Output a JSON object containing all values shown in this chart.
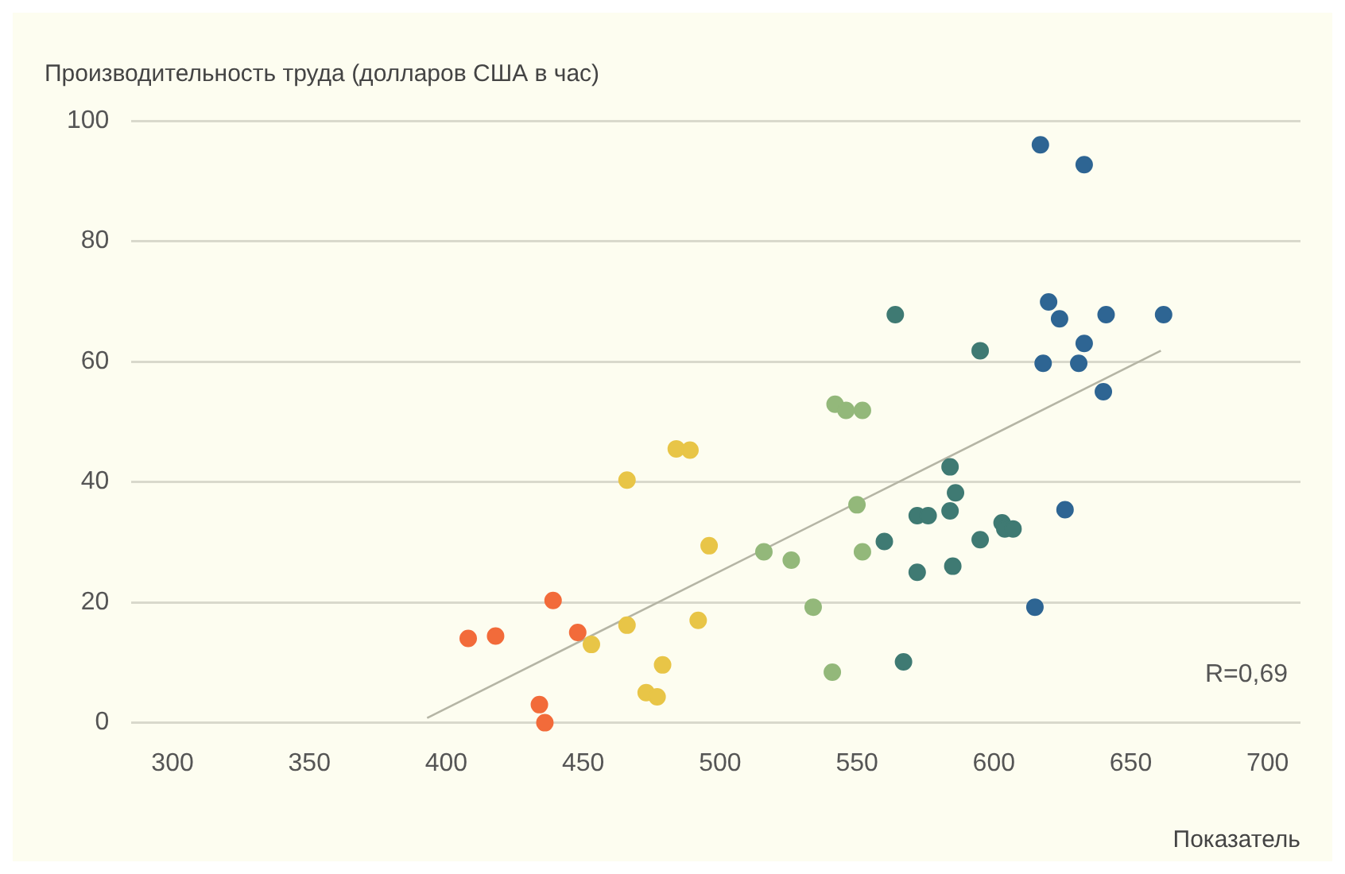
{
  "chart_data": {
    "type": "scatter",
    "ylabel": "Производительность труда (долларов США в час)",
    "xlabel": "Показатель",
    "xlim": [
      285,
      712
    ],
    "xticks": [
      300,
      350,
      400,
      450,
      500,
      550,
      600,
      650,
      700
    ],
    "ylim": [
      0,
      100
    ],
    "yticks": [
      0,
      20,
      40,
      60,
      80,
      100
    ],
    "grid": "y",
    "legend": false,
    "marker": "circle",
    "annotations": [
      "R=0,69"
    ],
    "series": [
      {
        "color": "#f26b3a",
        "x": [
          408,
          418,
          439,
          448,
          434,
          436
        ],
        "values": [
          14,
          14.4,
          20.3,
          15,
          3,
          0
        ]
      },
      {
        "color": "#e8c547",
        "x": [
          453,
          466,
          466,
          479,
          473,
          477,
          484,
          489,
          492,
          496
        ],
        "values": [
          13,
          16.2,
          40.3,
          9.6,
          5,
          4.3,
          45.5,
          45.3,
          17,
          29.4
        ]
      },
      {
        "color": "#93b87a",
        "x": [
          516,
          526,
          534,
          541,
          542,
          546,
          552,
          550,
          552
        ],
        "values": [
          28.4,
          27,
          19.2,
          8.4,
          52.9,
          51.9,
          51.9,
          36.2,
          28.4
        ]
      },
      {
        "color": "#3f7a73",
        "x": [
          560,
          564,
          567,
          572,
          576,
          572,
          584,
          584,
          586,
          585,
          595,
          595,
          603,
          604,
          607
        ],
        "values": [
          30.1,
          67.8,
          10.1,
          34.4,
          34.4,
          25,
          35.2,
          42.5,
          38.2,
          26,
          30.4,
          61.8,
          33.2,
          32.2,
          32.2
        ]
      },
      {
        "color": "#2e6593",
        "x": [
          617,
          633,
          620,
          624,
          641,
          662,
          618,
          631,
          633,
          640,
          626,
          615
        ],
        "values": [
          96,
          92.7,
          69.9,
          67.1,
          67.8,
          67.8,
          59.7,
          59.7,
          63,
          55,
          35.4,
          19.2
        ]
      },
      {
        "type": "line",
        "color": "#b5b5a5",
        "marker": "none",
        "x": [
          393,
          661
        ],
        "values": [
          0.8,
          61.8
        ]
      }
    ]
  }
}
